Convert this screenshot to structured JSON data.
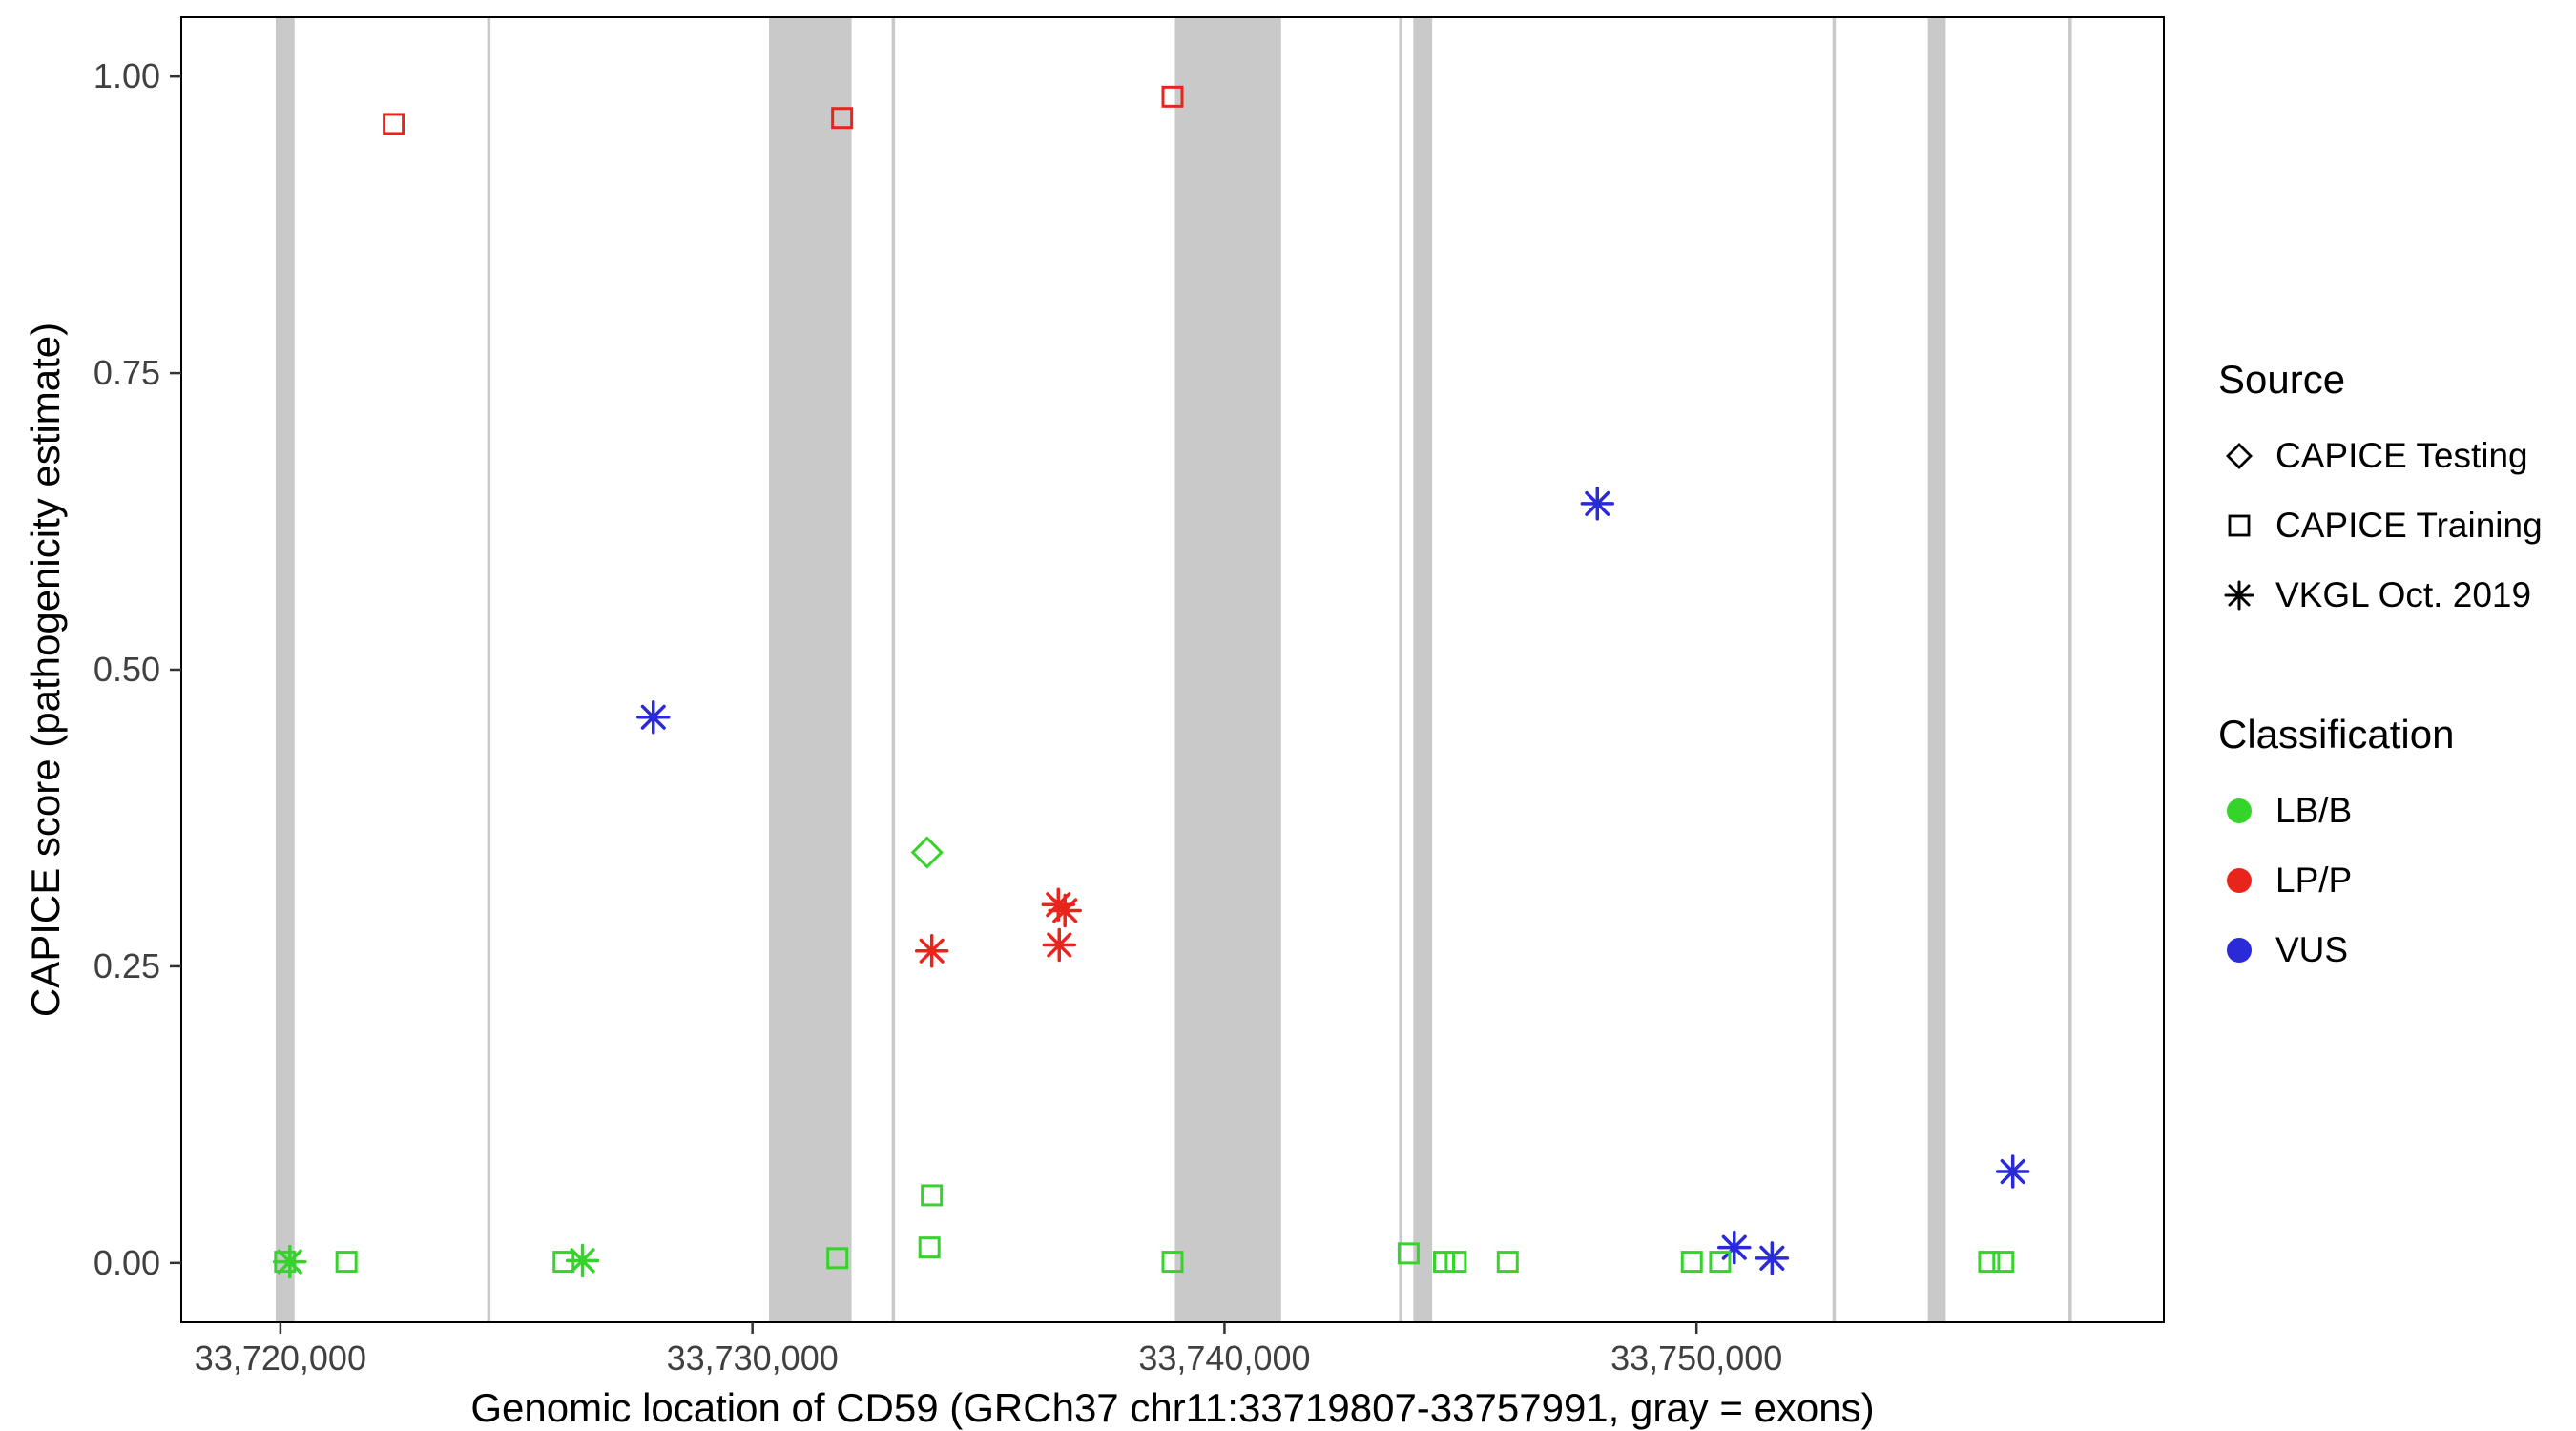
{
  "chart_data": {
    "type": "scatter",
    "title": "",
    "xlabel": "Genomic location of CD59 (GRCh37 chr11:33719807-33757991, gray = exons)",
    "ylabel": "CAPICE score (pathogenicity estimate)",
    "xlim": [
      33717900,
      33759900
    ],
    "ylim": [
      -0.05,
      1.05
    ],
    "grid": false,
    "x_ticks": [
      {
        "value": 33720000,
        "label": "33,720,000"
      },
      {
        "value": 33730000,
        "label": "33,730,000"
      },
      {
        "value": 33740000,
        "label": "33,740,000"
      },
      {
        "value": 33750000,
        "label": "33,750,000"
      }
    ],
    "y_ticks": [
      {
        "value": 0,
        "label": "0.00"
      },
      {
        "value": 0.25,
        "label": "0.25"
      },
      {
        "value": 0.5,
        "label": "0.50"
      },
      {
        "value": 0.75,
        "label": "0.75"
      },
      {
        "value": 1,
        "label": "1.00"
      }
    ],
    "exons": [
      {
        "start": 33719900,
        "end": 33720300
      },
      {
        "start": 33724380,
        "end": 33724450
      },
      {
        "start": 33730350,
        "end": 33732100
      },
      {
        "start": 33732950,
        "end": 33733020
      },
      {
        "start": 33738950,
        "end": 33741200
      },
      {
        "start": 33743700,
        "end": 33743770
      },
      {
        "start": 33744000,
        "end": 33744400
      },
      {
        "start": 33752880,
        "end": 33752950
      },
      {
        "start": 33754900,
        "end": 33755280
      },
      {
        "start": 33757880,
        "end": 33757950
      }
    ],
    "points": [
      {
        "x": 33722400,
        "y": 0.96,
        "source": "CAPICE Training",
        "cls": "LP/P"
      },
      {
        "x": 33731900,
        "y": 0.965,
        "source": "CAPICE Training",
        "cls": "LP/P"
      },
      {
        "x": 33738900,
        "y": 0.983,
        "source": "CAPICE Training",
        "cls": "LP/P"
      },
      {
        "x": 33733700,
        "y": 0.346,
        "source": "CAPICE Testing",
        "cls": "LB/B"
      },
      {
        "x": 33727900,
        "y": 0.46,
        "source": "VKGL Oct. 2019",
        "cls": "VUS"
      },
      {
        "x": 33747900,
        "y": 0.64,
        "source": "VKGL Oct. 2019",
        "cls": "VUS"
      },
      {
        "x": 33756700,
        "y": 0.077,
        "source": "VKGL Oct. 2019",
        "cls": "VUS"
      },
      {
        "x": 33750800,
        "y": 0.013,
        "source": "VKGL Oct. 2019",
        "cls": "VUS"
      },
      {
        "x": 33751600,
        "y": 0.004,
        "source": "VKGL Oct. 2019",
        "cls": "VUS"
      },
      {
        "x": 33733800,
        "y": 0.263,
        "source": "VKGL Oct. 2019",
        "cls": "LP/P"
      },
      {
        "x": 33736480,
        "y": 0.302,
        "source": "VKGL Oct. 2019",
        "cls": "LP/P"
      },
      {
        "x": 33736620,
        "y": 0.297,
        "source": "VKGL Oct. 2019",
        "cls": "LP/P"
      },
      {
        "x": 33736500,
        "y": 0.268,
        "source": "VKGL Oct. 2019",
        "cls": "LP/P"
      },
      {
        "x": 33720200,
        "y": 0.001,
        "source": "VKGL Oct. 2019",
        "cls": "LB/B"
      },
      {
        "x": 33726400,
        "y": 0.002,
        "source": "VKGL Oct. 2019",
        "cls": "LB/B"
      },
      {
        "x": 33720100,
        "y": 0.001,
        "source": "CAPICE Training",
        "cls": "LB/B"
      },
      {
        "x": 33721400,
        "y": 0.001,
        "source": "CAPICE Training",
        "cls": "LB/B"
      },
      {
        "x": 33726000,
        "y": 0.001,
        "source": "CAPICE Training",
        "cls": "LB/B"
      },
      {
        "x": 33731800,
        "y": 0.004,
        "source": "CAPICE Training",
        "cls": "LB/B"
      },
      {
        "x": 33733800,
        "y": 0.057,
        "source": "CAPICE Training",
        "cls": "LB/B"
      },
      {
        "x": 33733750,
        "y": 0.013,
        "source": "CAPICE Training",
        "cls": "LB/B"
      },
      {
        "x": 33738900,
        "y": 0.001,
        "source": "CAPICE Training",
        "cls": "LB/B"
      },
      {
        "x": 33743900,
        "y": 0.008,
        "source": "CAPICE Training",
        "cls": "LB/B"
      },
      {
        "x": 33744650,
        "y": 0.001,
        "source": "CAPICE Training",
        "cls": "LB/B"
      },
      {
        "x": 33744900,
        "y": 0.001,
        "source": "CAPICE Training",
        "cls": "LB/B"
      },
      {
        "x": 33746000,
        "y": 0.001,
        "source": "CAPICE Training",
        "cls": "LB/B"
      },
      {
        "x": 33749900,
        "y": 0.001,
        "source": "CAPICE Training",
        "cls": "LB/B"
      },
      {
        "x": 33750500,
        "y": 0.001,
        "source": "CAPICE Training",
        "cls": "LB/B"
      },
      {
        "x": 33756200,
        "y": 0.001,
        "source": "CAPICE Training",
        "cls": "LB/B"
      },
      {
        "x": 33756500,
        "y": 0.001,
        "source": "CAPICE Training",
        "cls": "LB/B"
      }
    ],
    "colors": {
      "LB/B": "#35d42a",
      "LP/P": "#e8241c",
      "VUS": "#2a2ad9",
      "exon": "#c9c9c9"
    },
    "legend": {
      "source_title": "Source",
      "sources": [
        {
          "label": "CAPICE Testing",
          "shape": "diamond"
        },
        {
          "label": "CAPICE Training",
          "shape": "square"
        },
        {
          "label": "VKGL Oct. 2019",
          "shape": "asterisk"
        }
      ],
      "classification_title": "Classification",
      "classifications": [
        {
          "label": "LB/B"
        },
        {
          "label": "LP/P"
        },
        {
          "label": "VUS"
        }
      ]
    }
  }
}
